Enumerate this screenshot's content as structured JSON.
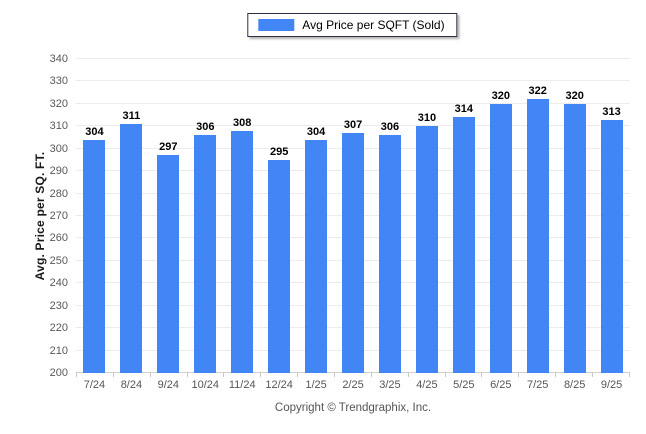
{
  "legend": {
    "label": "Avg Price per SQFT (Sold)",
    "swatch_color": "#4285f4"
  },
  "footer": {
    "copyright": "Copyright © Trendgraphix, Inc."
  },
  "colors": {
    "bar": "#4285f4",
    "gridline": "#ececec",
    "axis_line": "#cfcfcf",
    "tick_text": "#595959",
    "data_label": "#000000"
  },
  "chart_data": {
    "type": "bar",
    "title": "",
    "xlabel": "",
    "ylabel": "Avg. Price per SQ. FT.",
    "ylim": [
      200,
      340
    ],
    "ytick_step": 10,
    "grid": true,
    "legend_position": "top-center",
    "data_labels_shown": true,
    "categories": [
      "7/24",
      "8/24",
      "9/24",
      "10/24",
      "11/24",
      "12/24",
      "1/25",
      "2/25",
      "3/25",
      "4/25",
      "5/25",
      "6/25",
      "7/25",
      "8/25",
      "9/25"
    ],
    "series": [
      {
        "name": "Avg Price per SQFT (Sold)",
        "color": "#4285f4",
        "values": [
          304,
          311,
          297,
          306,
          308,
          295,
          304,
          307,
          306,
          310,
          314,
          320,
          322,
          320,
          313
        ]
      }
    ]
  }
}
